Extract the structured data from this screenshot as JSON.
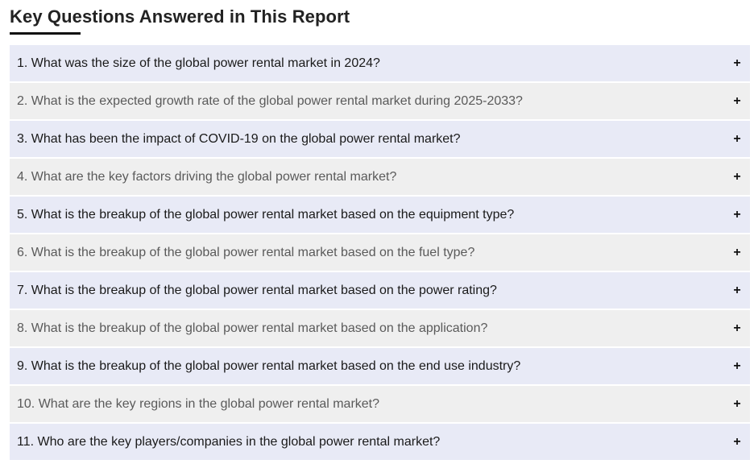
{
  "section": {
    "title": "Key Questions Answered in This Report"
  },
  "faq": {
    "toggle_icon": "plus-icon",
    "items": [
      {
        "question": "1. What was the size of the global power rental market in 2024?",
        "toggle": "+"
      },
      {
        "question": "2. What is the expected growth rate of the global power rental market during 2025-2033?",
        "toggle": "+"
      },
      {
        "question": "3. What has been the impact of COVID-19 on the global power rental market?",
        "toggle": "+"
      },
      {
        "question": "4. What are the key factors driving the global power rental market?",
        "toggle": "+"
      },
      {
        "question": "5. What is the breakup of the global power rental market based on the equipment type?",
        "toggle": "+"
      },
      {
        "question": "6. What is the breakup of the global power rental market based on the fuel type?",
        "toggle": "+"
      },
      {
        "question": "7. What is the breakup of the global power rental market based on the power rating?",
        "toggle": "+"
      },
      {
        "question": "8. What is the breakup of the global power rental market based on the application?",
        "toggle": "+"
      },
      {
        "question": "9. What is the breakup of the global power rental market based on the end use industry?",
        "toggle": "+"
      },
      {
        "question": "10. What are the key regions in the global power rental market?",
        "toggle": "+"
      },
      {
        "question": "11. Who are the key players/companies in the global power rental market?",
        "toggle": "+"
      }
    ]
  },
  "colors": {
    "odd_row_bg": "#e8eaf6",
    "even_row_bg": "#efefef",
    "odd_row_text": "#1a1a1a",
    "even_row_text": "#5a5a5a",
    "title_underline": "#111111"
  }
}
